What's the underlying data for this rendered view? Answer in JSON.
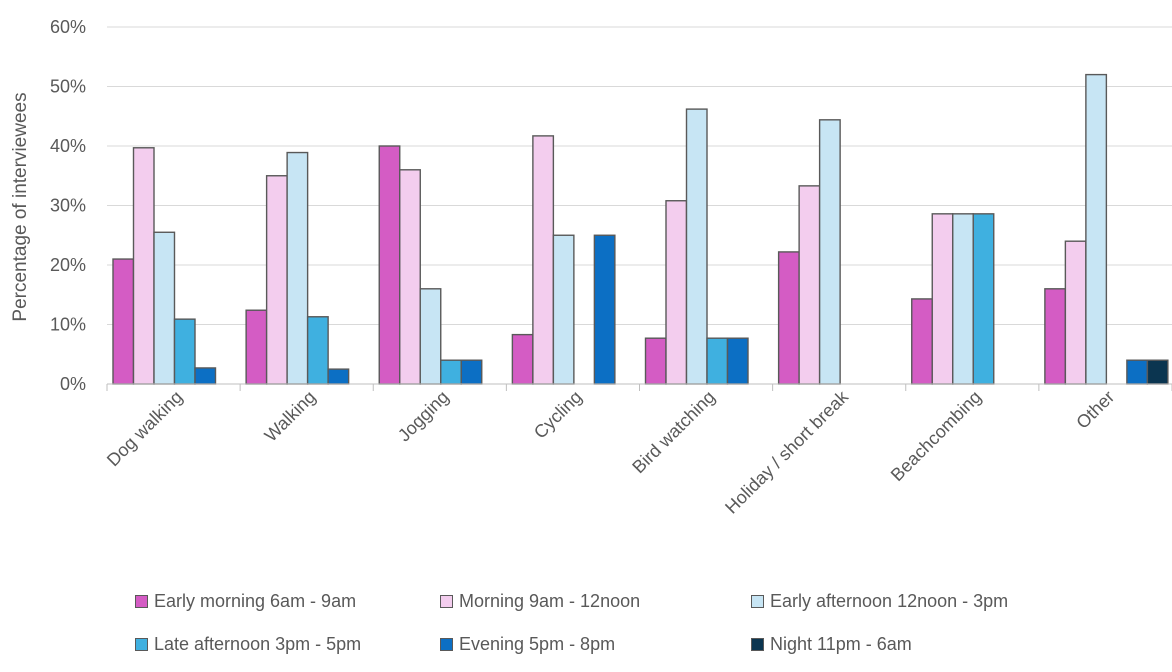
{
  "chart_data": {
    "type": "bar",
    "title": "",
    "xlabel": "",
    "ylabel": "Percentage of interviewees",
    "ylim": [
      0,
      60
    ],
    "yticks": [
      "0%",
      "10%",
      "20%",
      "30%",
      "40%",
      "50%",
      "60%"
    ],
    "grid": true,
    "legend_position": "bottom",
    "categories": [
      "Dog walking",
      "Walking",
      "Jogging",
      "Cycling",
      "Bird watching",
      "Holiday / short break",
      "Beachcombing",
      "Other"
    ],
    "series": [
      {
        "name": "Early morning 6am - 9am",
        "color": "#d45cc4",
        "values": [
          21,
          12.4,
          40,
          8.3,
          7.7,
          22.2,
          14.3,
          16
        ]
      },
      {
        "name": "Morning 9am - 12noon",
        "color": "#f3cdee",
        "values": [
          39.7,
          35,
          36,
          41.7,
          30.8,
          33.3,
          28.6,
          24
        ]
      },
      {
        "name": "Early afternoon 12noon - 3pm",
        "color": "#c7e5f4",
        "values": [
          25.5,
          38.9,
          16,
          25,
          46.2,
          44.4,
          28.6,
          52
        ]
      },
      {
        "name": "Late afternoon 3pm - 5pm",
        "color": "#3fb0e0",
        "values": [
          10.9,
          11.3,
          4,
          0,
          7.7,
          0,
          28.6,
          0
        ]
      },
      {
        "name": "Evening 5pm - 8pm",
        "color": "#0c6fc4",
        "values": [
          2.7,
          2.5,
          4,
          25,
          7.7,
          0,
          0,
          4
        ]
      },
      {
        "name": "Night 11pm - 6am",
        "color": "#0b3550",
        "values": [
          0,
          0,
          0,
          0,
          0,
          0,
          0,
          4
        ]
      }
    ]
  }
}
